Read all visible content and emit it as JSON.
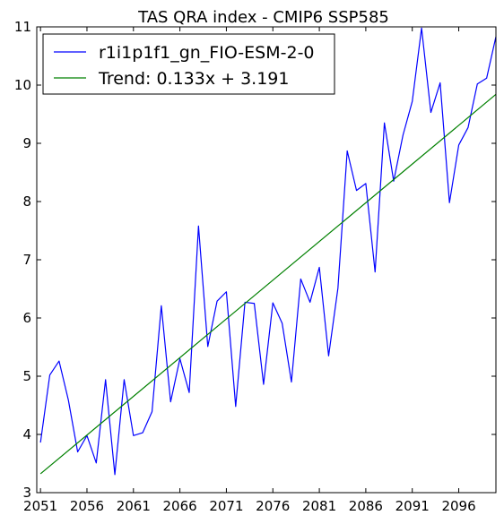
{
  "chart_data": {
    "type": "line",
    "title": "TAS QRA index - CMIP6 SSP585",
    "xlabel": "",
    "ylabel": "",
    "xlim": [
      2050.6,
      2100
    ],
    "ylim": [
      3,
      11
    ],
    "x_ticks": [
      2051,
      2056,
      2061,
      2066,
      2071,
      2076,
      2081,
      2086,
      2091,
      2096
    ],
    "y_ticks": [
      3,
      4,
      5,
      6,
      7,
      8,
      9,
      10,
      11
    ],
    "legend_position": "top-left",
    "grid": false,
    "series": [
      {
        "name": "r1i1p1f1_gn_FIO-ESM-2-0",
        "color": "#0000ff",
        "x": [
          2051,
          2052,
          2053,
          2054,
          2055,
          2056,
          2057,
          2058,
          2059,
          2060,
          2061,
          2062,
          2063,
          2064,
          2065,
          2066,
          2067,
          2068,
          2069,
          2070,
          2071,
          2072,
          2073,
          2074,
          2075,
          2076,
          2077,
          2078,
          2079,
          2080,
          2081,
          2082,
          2083,
          2084,
          2085,
          2086,
          2087,
          2088,
          2089,
          2090,
          2091,
          2092,
          2093,
          2094,
          2095,
          2096,
          2097,
          2098,
          2099,
          2100
        ],
        "values": [
          3.86,
          5.02,
          5.26,
          4.59,
          3.7,
          3.98,
          3.51,
          4.94,
          3.31,
          4.94,
          3.98,
          4.03,
          4.39,
          6.21,
          4.56,
          5.3,
          4.72,
          7.58,
          5.51,
          6.29,
          6.45,
          4.48,
          6.27,
          6.25,
          4.86,
          6.26,
          5.91,
          4.9,
          6.67,
          6.27,
          6.87,
          5.35,
          6.51,
          8.87,
          8.19,
          8.31,
          6.79,
          9.35,
          8.35,
          9.14,
          9.72,
          10.98,
          9.53,
          10.04,
          7.98,
          8.97,
          9.27,
          10.02,
          10.12,
          10.83
        ]
      },
      {
        "name": "Trend: 0.133x + 3.191",
        "color": "#008000",
        "slope": 0.133,
        "intercept": 3.191,
        "x": [
          2051,
          2100
        ],
        "values": [
          3.324,
          9.841
        ]
      }
    ]
  }
}
